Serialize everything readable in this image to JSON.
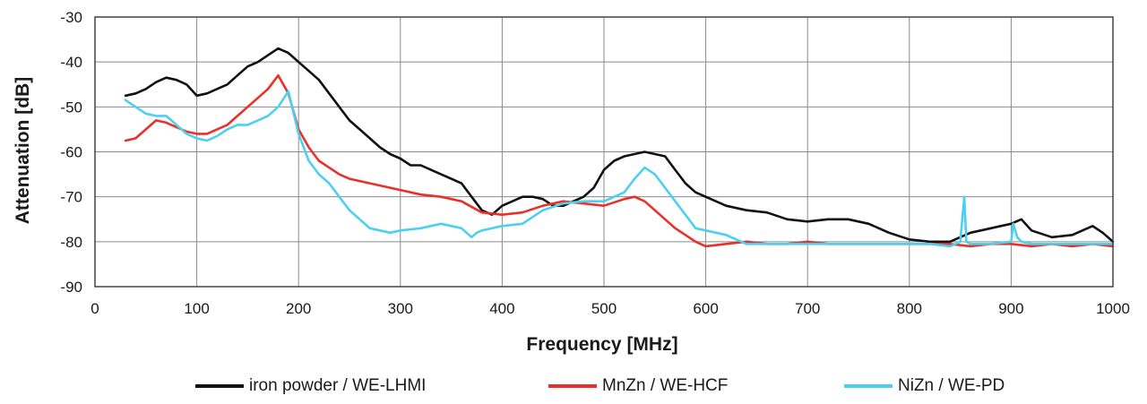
{
  "chart_data": {
    "type": "line",
    "xlabel": "Frequency [MHz]",
    "ylabel": "Attenuation [dB]",
    "xlim": [
      0,
      1000
    ],
    "ylim": [
      -90,
      -30
    ],
    "xticks": [
      0,
      100,
      200,
      300,
      400,
      500,
      600,
      700,
      800,
      900,
      1000
    ],
    "yticks": [
      -30,
      -40,
      -50,
      -60,
      -70,
      -80,
      -90
    ],
    "grid": true,
    "legend_position": "bottom",
    "series": [
      {
        "name": "iron powder / WE-LHMI",
        "color": "#111111",
        "x": [
          30,
          40,
          50,
          60,
          70,
          80,
          90,
          100,
          110,
          120,
          130,
          140,
          150,
          160,
          170,
          180,
          190,
          200,
          210,
          220,
          230,
          240,
          250,
          260,
          270,
          280,
          290,
          300,
          310,
          320,
          330,
          340,
          350,
          360,
          370,
          380,
          390,
          400,
          410,
          420,
          430,
          440,
          450,
          460,
          470,
          480,
          490,
          500,
          510,
          520,
          530,
          540,
          550,
          560,
          570,
          580,
          590,
          600,
          620,
          640,
          660,
          680,
          700,
          720,
          740,
          760,
          780,
          800,
          820,
          840,
          860,
          880,
          900,
          910,
          920,
          940,
          960,
          980,
          990,
          1000
        ],
        "y": [
          -47.5,
          -47,
          -46,
          -44.5,
          -43.5,
          -44,
          -45,
          -47.5,
          -47,
          -46,
          -45,
          -43,
          -41,
          -40,
          -38.5,
          -37,
          -38,
          -40,
          -42,
          -44,
          -47,
          -50,
          -53,
          -55,
          -57,
          -59,
          -60.5,
          -61.5,
          -63,
          -63,
          -64,
          -65,
          -66,
          -67,
          -70,
          -73,
          -74,
          -72,
          -71,
          -70,
          -70,
          -70.5,
          -72,
          -72,
          -71,
          -70,
          -68,
          -64,
          -62,
          -61,
          -60.5,
          -60,
          -60.5,
          -61,
          -64,
          -67,
          -69,
          -70,
          -72,
          -73,
          -73.5,
          -75,
          -75.5,
          -75,
          -75,
          -76,
          -78,
          -79.5,
          -80,
          -80,
          -78,
          -77,
          -76,
          -75,
          -77.5,
          -79,
          -78.5,
          -76.5,
          -78,
          -80
        ]
      },
      {
        "name": "MnZn / WE-HCF",
        "color": "#e8312b",
        "x": [
          30,
          40,
          50,
          60,
          70,
          80,
          90,
          100,
          110,
          120,
          130,
          140,
          150,
          160,
          170,
          180,
          190,
          200,
          210,
          220,
          230,
          240,
          250,
          260,
          270,
          280,
          290,
          300,
          320,
          340,
          360,
          380,
          400,
          420,
          440,
          460,
          480,
          500,
          520,
          530,
          540,
          550,
          560,
          570,
          580,
          590,
          600,
          620,
          640,
          660,
          680,
          700,
          720,
          740,
          760,
          780,
          800,
          820,
          840,
          860,
          880,
          900,
          920,
          940,
          960,
          980,
          1000
        ],
        "y": [
          -57.5,
          -57,
          -55,
          -53,
          -53.5,
          -54.5,
          -55.5,
          -56,
          -56,
          -55,
          -54,
          -52,
          -50,
          -48,
          -46,
          -43,
          -47,
          -55,
          -59,
          -62,
          -63.5,
          -65,
          -66,
          -66.5,
          -67,
          -67.5,
          -68,
          -68.5,
          -69.5,
          -70,
          -71,
          -73.5,
          -74,
          -73.5,
          -72,
          -71,
          -71.5,
          -72,
          -70.5,
          -70,
          -71,
          -73,
          -75,
          -77,
          -78.5,
          -80,
          -81,
          -80.5,
          -80,
          -80.5,
          -80.5,
          -80,
          -80.5,
          -80.5,
          -80.5,
          -80.5,
          -80.5,
          -80.5,
          -80.5,
          -81,
          -80.5,
          -80.5,
          -81,
          -80.5,
          -81,
          -80.5,
          -81
        ]
      },
      {
        "name": "NiZn / WE-PD",
        "color": "#4dd0ef",
        "x": [
          30,
          40,
          50,
          60,
          70,
          80,
          90,
          100,
          110,
          120,
          130,
          140,
          150,
          160,
          170,
          180,
          190,
          200,
          210,
          220,
          230,
          240,
          250,
          260,
          270,
          280,
          290,
          300,
          320,
          340,
          360,
          370,
          375,
          380,
          400,
          420,
          440,
          460,
          480,
          500,
          520,
          530,
          540,
          550,
          560,
          570,
          580,
          590,
          600,
          620,
          640,
          660,
          680,
          700,
          720,
          740,
          760,
          780,
          800,
          820,
          840,
          850,
          854,
          856,
          860,
          880,
          900,
          902,
          906,
          910,
          920,
          940,
          960,
          980,
          1000
        ],
        "y": [
          -48.5,
          -50,
          -51.5,
          -52,
          -52,
          -54,
          -56,
          -57,
          -57.5,
          -56.5,
          -55,
          -54,
          -54,
          -53,
          -52,
          -50,
          -46.5,
          -56,
          -62,
          -65,
          -67,
          -70,
          -73,
          -75,
          -77,
          -77.5,
          -78,
          -77.5,
          -77,
          -76,
          -77,
          -79,
          -78,
          -77.5,
          -76.5,
          -76,
          -73,
          -71.5,
          -71,
          -71,
          -69,
          -66,
          -63.5,
          -65,
          -68,
          -71,
          -74,
          -77,
          -77.5,
          -78.5,
          -80.5,
          -80.5,
          -80.5,
          -80.5,
          -80.5,
          -80.5,
          -80.5,
          -80.5,
          -80.5,
          -80.5,
          -81,
          -80,
          -70,
          -80,
          -80.5,
          -80.5,
          -80,
          -76,
          -79,
          -80,
          -80.5,
          -80.5,
          -80.5,
          -80.5,
          -80.5
        ]
      }
    ]
  }
}
